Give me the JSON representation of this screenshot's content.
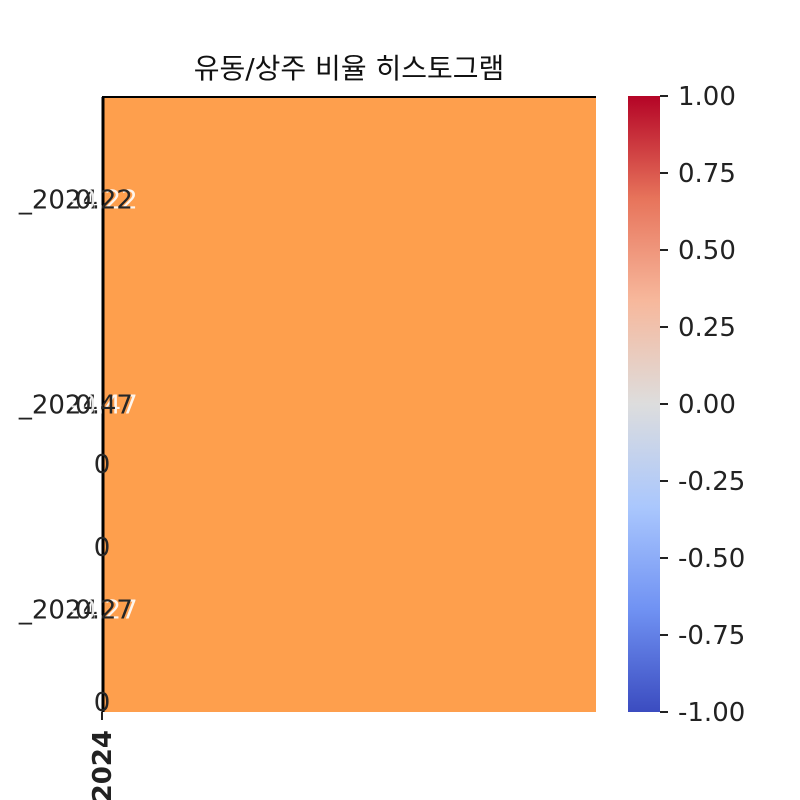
{
  "chart_data": {
    "type": "heatmap",
    "title": "유동/상주 비율 히스토그램",
    "x_tick_labels": [
      "2024"
    ],
    "y_tick_labels": [
      "_2024",
      "_2024",
      "_2024"
    ],
    "annotations_light": [
      "-0.22",
      "-0.47",
      "-0.27"
    ],
    "annotations_dark": [
      "0.22",
      "0.47",
      "0.27"
    ],
    "stray_annotations": [
      "0",
      "0",
      "0"
    ],
    "cell_color": "#fe9f4d",
    "colorbar": {
      "ticks": [
        "1.00",
        "0.75",
        "0.50",
        "0.25",
        "0.00",
        "-0.25",
        "-0.50",
        "-0.75",
        "-1.00"
      ],
      "range": [
        -1,
        1
      ],
      "colormap": "coolwarm",
      "colors": [
        "#3b4cc0",
        "#7092f3",
        "#aac7fd",
        "#dddddd",
        "#f7b89c",
        "#e7745b",
        "#b40426"
      ]
    }
  }
}
